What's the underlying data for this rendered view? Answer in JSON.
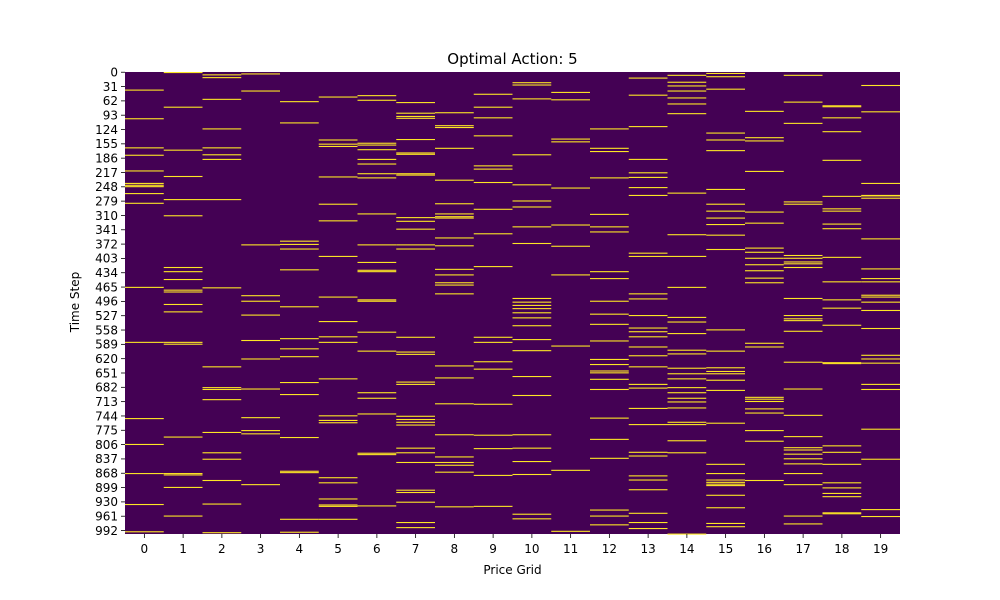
{
  "chart_data": {
    "type": "heatmap",
    "title": "Optimal Action: 5",
    "xlabel": "Price Grid",
    "ylabel": "Time Step",
    "x_categories": [
      "0",
      "1",
      "2",
      "3",
      "4",
      "5",
      "6",
      "7",
      "8",
      "9",
      "10",
      "11",
      "12",
      "13",
      "14",
      "15",
      "16",
      "17",
      "18",
      "19"
    ],
    "y_tick_labels": [
      "0",
      "31",
      "62",
      "93",
      "124",
      "155",
      "186",
      "217",
      "248",
      "279",
      "310",
      "341",
      "372",
      "403",
      "434",
      "465",
      "496",
      "527",
      "558",
      "589",
      "620",
      "651",
      "682",
      "713",
      "744",
      "775",
      "806",
      "837",
      "868",
      "899",
      "930",
      "961",
      "992"
    ],
    "n_time_steps": 1000,
    "value_range": [
      0,
      1
    ],
    "colors": {
      "background": "#440154",
      "highlight": "#fde725"
    },
    "cells": [
      [
        38,
        100,
        163,
        179,
        213,
        240,
        244,
        247,
        262,
        283,
        465,
        584,
        749,
        805,
        868,
        935,
        994
      ],
      [
        0,
        75,
        168,
        225,
        275,
        310,
        422,
        431,
        448,
        471,
        475,
        502,
        518,
        584,
        588,
        789,
        868,
        871,
        898,
        960
      ],
      [
        5,
        11,
        58,
        122,
        163,
        178,
        188,
        275,
        466,
        637,
        682,
        686,
        708,
        779,
        823,
        837,
        883,
        934,
        996
      ],
      [
        3,
        40,
        373,
        483,
        495,
        525,
        580,
        620,
        685,
        747,
        775,
        782,
        892
      ],
      [
        63,
        109,
        365,
        372,
        382,
        427,
        507,
        576,
        598,
        615,
        671,
        697,
        790,
        863,
        866,
        967,
        995
      ],
      [
        53,
        146,
        155,
        160,
        226,
        285,
        321,
        398,
        486,
        539,
        572,
        584,
        663,
        743,
        753,
        758,
        877,
        888,
        923,
        936,
        939,
        967
      ],
      [
        50,
        60,
        153,
        157,
        167,
        188,
        198,
        219,
        228,
        306,
        373,
        411,
        428,
        431,
        492,
        495,
        562,
        603,
        693,
        705,
        739,
        824,
        827,
        938
      ],
      [
        65,
        88,
        95,
        99,
        145,
        174,
        177,
        219,
        222,
        314,
        322,
        339,
        373,
        382,
        573,
        605,
        610,
        670,
        675,
        744,
        751,
        757,
        763,
        813,
        823,
        844,
        904,
        909,
        930,
        974,
        985
      ],
      [
        87,
        115,
        119,
        164,
        233,
        284,
        306,
        312,
        315,
        358,
        375,
        426,
        438,
        455,
        460,
        479,
        635,
        661,
        717,
        784,
        832,
        844,
        850,
        865,
        940
      ],
      [
        47,
        75,
        98,
        137,
        202,
        209,
        238,
        296,
        349,
        420,
        573,
        584,
        626,
        642,
        718,
        785,
        814,
        872,
        939
      ],
      [
        22,
        27,
        57,
        178,
        243,
        278,
        291,
        334,
        370,
        489,
        497,
        504,
        511,
        520,
        531,
        548,
        578,
        602,
        658,
        699,
        784,
        813,
        842,
        870,
        956,
        966
      ],
      [
        43,
        59,
        144,
        150,
        250,
        330,
        376,
        438,
        592,
        861,
        993
      ],
      [
        122,
        164,
        171,
        228,
        307,
        334,
        345,
        431,
        446,
        495,
        523,
        545,
        581,
        621,
        632,
        646,
        650,
        664,
        686,
        748,
        794,
        835,
        947,
        960,
        979
      ],
      [
        12,
        49,
        117,
        188,
        217,
        227,
        249,
        266,
        391,
        398,
        479,
        490,
        526,
        553,
        561,
        572,
        594,
        613,
        637,
        675,
        683,
        727,
        762,
        822,
        830,
        873,
        882,
        903,
        954,
        974,
        987
      ],
      [
        6,
        21,
        29,
        40,
        55,
        68,
        89,
        261,
        351,
        398,
        465,
        530,
        540,
        565,
        601,
        609,
        640,
        652,
        663,
        682,
        693,
        705,
        713,
        726,
        757,
        762,
        797,
        823,
        999
      ],
      [
        2,
        9,
        36,
        131,
        146,
        169,
        253,
        285,
        300,
        315,
        329,
        352,
        383,
        557,
        603,
        639,
        647,
        652,
        666,
        688,
        759,
        848,
        868,
        882,
        887,
        891,
        894,
        915,
        942,
        976,
        983
      ],
      [
        84,
        141,
        148,
        214,
        302,
        326,
        380,
        389,
        402,
        416,
        429,
        445,
        455,
        586,
        594,
        703,
        707,
        712,
        728,
        737,
        775,
        798,
        883
      ],
      [
        6,
        64,
        110,
        280,
        285,
        396,
        402,
        410,
        422,
        414,
        489,
        526,
        533,
        537,
        560,
        627,
        685,
        742,
        788,
        812,
        817,
        826,
        836,
        847,
        868,
        892,
        960,
        977
      ],
      [
        72,
        74,
        98,
        128,
        190,
        268,
        295,
        300,
        328,
        338,
        400,
        453,
        492,
        510,
        547,
        628,
        630,
        808,
        822,
        848,
        888,
        899,
        911,
        918,
        953,
        955
      ],
      [
        28,
        85,
        240,
        266,
        267,
        272,
        360,
        425,
        446,
        453,
        482,
        486,
        497,
        515,
        554,
        612,
        620,
        629,
        675,
        686,
        772,
        837,
        946,
        961
      ]
    ]
  }
}
